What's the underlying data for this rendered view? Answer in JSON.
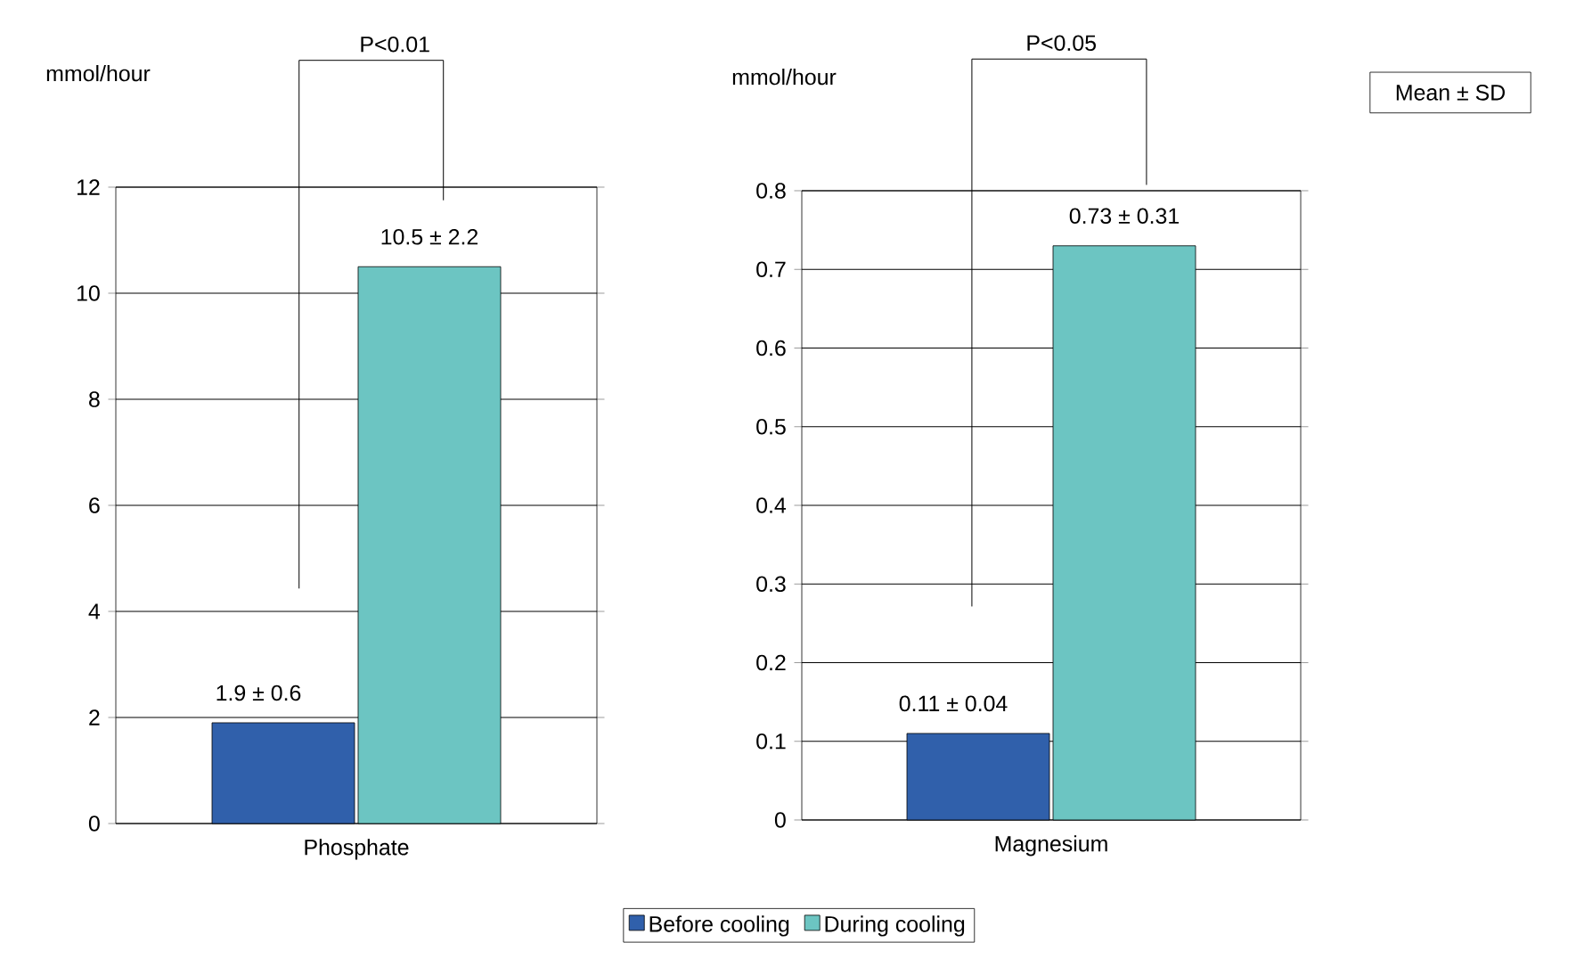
{
  "chart_data": [
    {
      "type": "bar",
      "ylabel": "mmol/hour",
      "categories": [
        "Phosphate"
      ],
      "ylim": [
        0,
        12
      ],
      "yticks": [
        0,
        2,
        4,
        6,
        8,
        10,
        12
      ],
      "grid": "y",
      "legend": "bottom",
      "series": [
        {
          "name": "Before cooling",
          "color": "#3060ab",
          "values": [
            1.9
          ],
          "value_labels": [
            "1.9 ± 0.6"
          ]
        },
        {
          "name": "During cooling",
          "color": "#6cc5c2",
          "values": [
            10.5
          ],
          "value_labels": [
            "10.5 ± 2.2"
          ]
        }
      ],
      "annotations": [
        "P<0.01"
      ]
    },
    {
      "type": "bar",
      "ylabel": "mmol/hour",
      "categories": [
        "Magnesium"
      ],
      "ylim": [
        0,
        0.8
      ],
      "yticks": [
        0,
        0.1,
        0.2,
        0.3,
        0.4,
        0.5,
        0.6,
        0.7,
        0.8
      ],
      "grid": "y",
      "series": [
        {
          "color": "#3060ab",
          "values": [
            0.11
          ],
          "value_labels": [
            "0.11 ± 0.04"
          ]
        },
        {
          "color": "#6cc5c2",
          "values": [
            0.73
          ],
          "value_labels": [
            "0.73 ± 0.31"
          ]
        }
      ],
      "annotations": [
        "P<0.05",
        "Mean ± SD"
      ]
    }
  ]
}
